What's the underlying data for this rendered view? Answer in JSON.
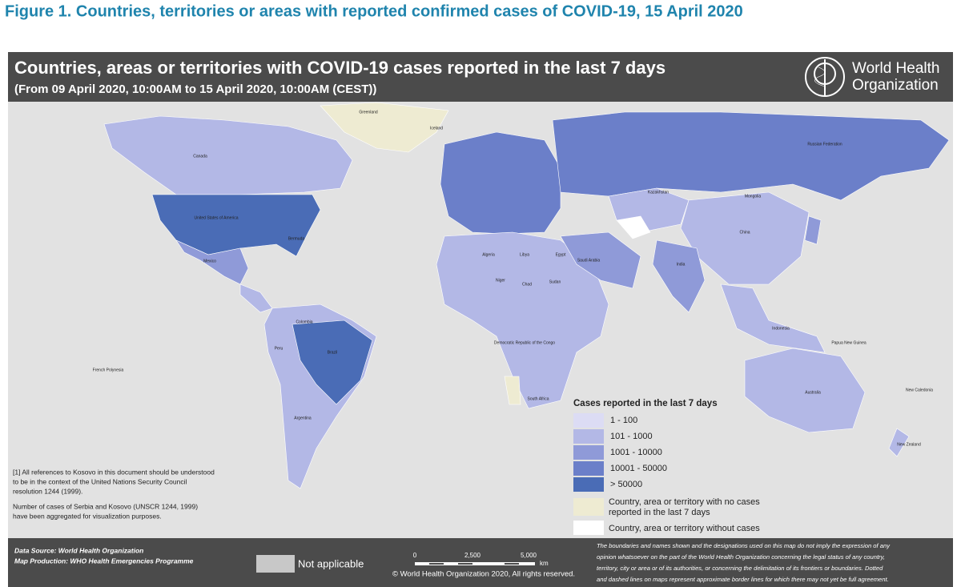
{
  "figure_title": "Figure 1. Countries, territories or areas with reported confirmed cases of COVID-19, 15 April 2020",
  "header": {
    "title": "Countries, areas or territories with COVID-19  cases reported in the last 7 days",
    "subtitle": "(From 09 April 2020, 10:00AM  to 15 April 2020, 10:00AM (CEST))",
    "org_line1": "World Health",
    "org_line2": "Organization"
  },
  "legend": {
    "title": "Cases reported in the last 7 days",
    "items": [
      {
        "label": "1 - 100",
        "color": "#dcdcf4"
      },
      {
        "label": "101 - 1000",
        "color": "#b3b8e6"
      },
      {
        "label": "1001 - 10000",
        "color": "#8f9ad8"
      },
      {
        "label": "10001 - 50000",
        "color": "#6b7fc9"
      },
      {
        "label": "> 50000",
        "color": "#4a6cb6"
      }
    ],
    "no_cases": {
      "label_line1": "Country, area or territory with no cases",
      "label_line2": "reported in the last 7 days",
      "color": "#eeebd2"
    },
    "without_cases": {
      "label": "Country, area or territory without cases",
      "color": "#ffffff"
    }
  },
  "footnotes": [
    "[1] All references to Kosovo in this document should be understood",
    "to be in the context of the United Nations Security Council",
    "resolution 1244 (1999).",
    "Number of cases of Serbia and Kosovo (UNSCR 1244, 1999)",
    " have been aggregated for visualization purposes."
  ],
  "footer": {
    "data_source": "Data Source: World Health Organization",
    "map_production": "Map Production: WHO Health Emergencies Programme",
    "not_applicable": "Not applicable",
    "scale_labels": [
      "0",
      "2,500",
      "5,000",
      "km"
    ],
    "copyright": "© World Health Organization  2020,  All rights reserved.",
    "disclaimer": [
      "The boundaries and names shown and the designations used on this map do not imply the expression of any",
      "opinion whatsoever on the part of the World Health Organization concerning the legal status of any country,",
      "territory, city or area or of its authorities, or concerning the delimitation of its frontiers or boundaries. Dotted",
      "and dashed lines on maps represent approximate border lines for which there may not yet be full agreement."
    ]
  },
  "country_labels": [
    "Greenland",
    "Canada",
    "United States of America",
    "Mexico",
    "Brazil",
    "Argentina",
    "Peru",
    "Colombia",
    "Russian Federation",
    "Kazakhstan",
    "Mongolia",
    "China",
    "India",
    "Australia",
    "Algeria",
    "Libya",
    "Egypt",
    "Niger",
    "Chad",
    "Sudan",
    "Democratic Republic of the Congo",
    "South Africa",
    "Saudi Arabia",
    "Indonesia",
    "Papua New Guinea",
    "New Zealand",
    "French Polynesia",
    "Iceland",
    "New Caledonia",
    "Bermuda"
  ]
}
